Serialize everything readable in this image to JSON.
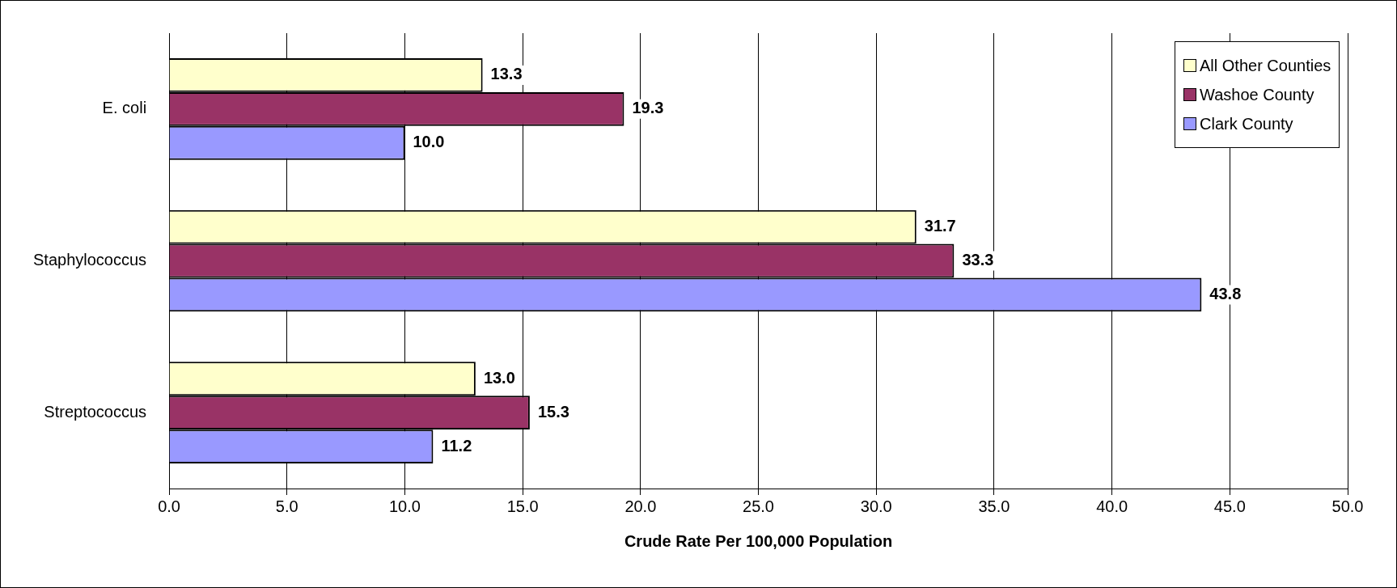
{
  "chart_data": {
    "type": "bar",
    "orientation": "horizontal",
    "xlabel": "Crude Rate Per 100,000 Population",
    "categories": [
      "E. coli",
      "Staphylococcus",
      "Streptococcus"
    ],
    "series": [
      {
        "name": "All Other Counties",
        "color": "#ffffcc",
        "values": [
          13.3,
          31.7,
          13.0
        ]
      },
      {
        "name": "Washoe County",
        "color": "#993366",
        "values": [
          19.3,
          33.3,
          15.3
        ]
      },
      {
        "name": "Clark County",
        "color": "#9999ff",
        "values": [
          10.0,
          43.8,
          11.2
        ]
      }
    ],
    "value_labels": [
      [
        "13.3",
        "31.7",
        "13.0"
      ],
      [
        "19.3",
        "33.3",
        "15.3"
      ],
      [
        "10.0",
        "43.8",
        "11.2"
      ]
    ],
    "xlim": [
      0,
      50
    ],
    "xticks": [
      {
        "value": 0,
        "label": "0.0"
      },
      {
        "value": 5,
        "label": "5.0"
      },
      {
        "value": 10,
        "label": "10.0"
      },
      {
        "value": 15,
        "label": "15.0"
      },
      {
        "value": 20,
        "label": "20.0"
      },
      {
        "value": 25,
        "label": "25.0"
      },
      {
        "value": 30,
        "label": "30.0"
      },
      {
        "value": 35,
        "label": "35.0"
      },
      {
        "value": 40,
        "label": "40.0"
      },
      {
        "value": 45,
        "label": "45.0"
      },
      {
        "value": 50,
        "label": "50.0"
      }
    ],
    "grid": "x",
    "legend": "top right"
  }
}
